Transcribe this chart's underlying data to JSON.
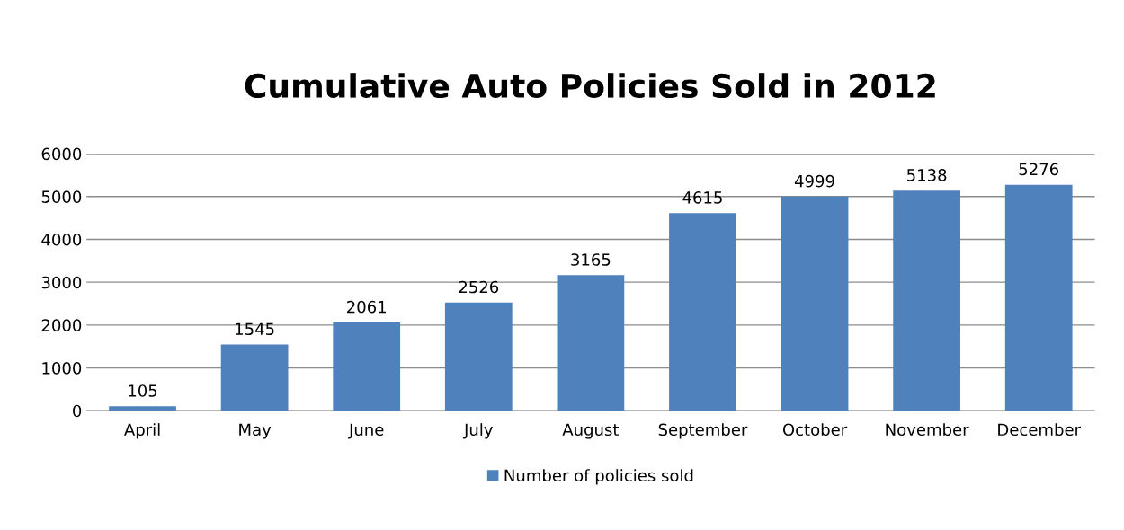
{
  "chart_data": {
    "type": "bar",
    "title": "Cumulative Auto Policies Sold in 2012",
    "categories": [
      "April",
      "May",
      "June",
      "July",
      "August",
      "September",
      "October",
      "November",
      "December"
    ],
    "series": [
      {
        "name": "Number of policies sold",
        "color": "#4f81bd",
        "values": [
          105,
          1545,
          2061,
          2526,
          3165,
          4615,
          4999,
          5138,
          5276
        ]
      }
    ],
    "ylim": [
      0,
      6000
    ],
    "yticks": [
      0,
      1000,
      2000,
      3000,
      4000,
      5000,
      6000
    ],
    "grid": "y",
    "legend": "bottom",
    "data_labels": true
  }
}
